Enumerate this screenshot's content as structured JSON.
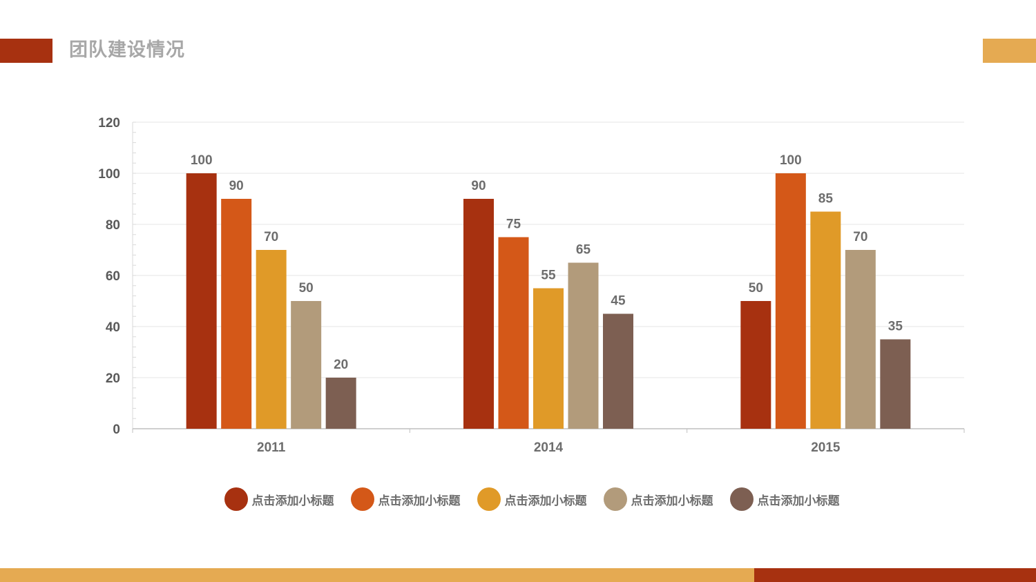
{
  "page": {
    "title": "团队建设情况"
  },
  "colors": {
    "accent_dark": "#a73110",
    "accent_light": "#e5aa52",
    "series": [
      "#a73110",
      "#d45818",
      "#e09a28",
      "#b29b7b",
      "#7d5f52"
    ]
  },
  "chart_data": {
    "type": "bar",
    "title": "",
    "xlabel": "",
    "ylabel": "",
    "categories": [
      "2011",
      "2014",
      "2015"
    ],
    "ylim": [
      0,
      120
    ],
    "yticks": [
      0,
      20,
      40,
      60,
      80,
      100,
      120
    ],
    "grid": true,
    "legend_position": "bottom",
    "series": [
      {
        "name": "点击添加小标题",
        "color": "#a73110",
        "values": [
          100,
          90,
          50
        ]
      },
      {
        "name": "点击添加小标题",
        "color": "#d45818",
        "values": [
          90,
          75,
          100
        ]
      },
      {
        "name": "点击添加小标题",
        "color": "#e09a28",
        "values": [
          70,
          55,
          85
        ]
      },
      {
        "name": "点击添加小标题",
        "color": "#b29b7b",
        "values": [
          50,
          65,
          70
        ]
      },
      {
        "name": "点击添加小标题",
        "color": "#7d5f52",
        "values": [
          20,
          45,
          35
        ]
      }
    ]
  }
}
